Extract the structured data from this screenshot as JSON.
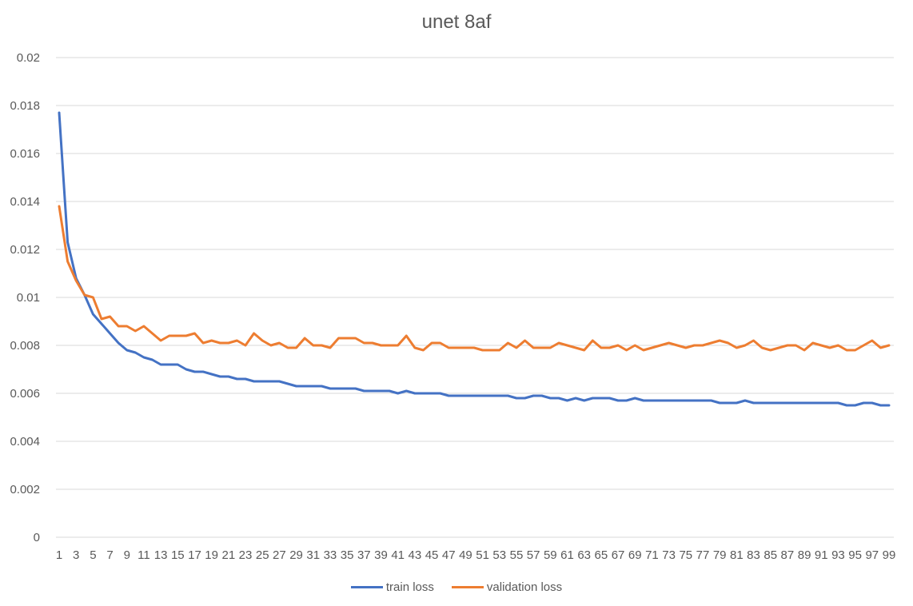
{
  "chart_data": {
    "type": "line",
    "title": "unet 8af",
    "xlabel": "",
    "ylabel": "",
    "ylim": [
      0,
      0.02
    ],
    "yticks": [
      "0",
      "0.002",
      "0.004",
      "0.006",
      "0.008",
      "0.01",
      "0.012",
      "0.014",
      "0.016",
      "0.018",
      "0.02"
    ],
    "xtick_labels": [
      "1",
      "3",
      "5",
      "7",
      "9",
      "11",
      "13",
      "15",
      "17",
      "19",
      "21",
      "23",
      "25",
      "27",
      "29",
      "31",
      "33",
      "35",
      "37",
      "39",
      "41",
      "43",
      "45",
      "47",
      "49",
      "51",
      "53",
      "55",
      "57",
      "59",
      "61",
      "63",
      "65",
      "67",
      "69",
      "71",
      "73",
      "75",
      "77",
      "79",
      "81",
      "83",
      "85",
      "87",
      "89",
      "91",
      "93",
      "95",
      "97",
      "99"
    ],
    "grid": "horizontal",
    "legend_position": "bottom",
    "x": [
      1,
      2,
      3,
      4,
      5,
      6,
      7,
      8,
      9,
      10,
      11,
      12,
      13,
      14,
      15,
      16,
      17,
      18,
      19,
      20,
      21,
      22,
      23,
      24,
      25,
      26,
      27,
      28,
      29,
      30,
      31,
      32,
      33,
      34,
      35,
      36,
      37,
      38,
      39,
      40,
      41,
      42,
      43,
      44,
      45,
      46,
      47,
      48,
      49,
      50,
      51,
      52,
      53,
      54,
      55,
      56,
      57,
      58,
      59,
      60,
      61,
      62,
      63,
      64,
      65,
      66,
      67,
      68,
      69,
      70,
      71,
      72,
      73,
      74,
      75,
      76,
      77,
      78,
      79,
      80,
      81,
      82,
      83,
      84,
      85,
      86,
      87,
      88,
      89,
      90,
      91,
      92,
      93,
      94,
      95,
      96,
      97,
      98,
      99
    ],
    "series": [
      {
        "name": "train loss",
        "color": "#4472C4",
        "values": [
          0.0177,
          0.0123,
          0.0108,
          0.0101,
          0.0093,
          0.0089,
          0.0085,
          0.0081,
          0.0078,
          0.0077,
          0.0075,
          0.0074,
          0.0072,
          0.0072,
          0.0072,
          0.007,
          0.0069,
          0.0069,
          0.0068,
          0.0067,
          0.0067,
          0.0066,
          0.0066,
          0.0065,
          0.0065,
          0.0065,
          0.0065,
          0.0064,
          0.0063,
          0.0063,
          0.0063,
          0.0063,
          0.0062,
          0.0062,
          0.0062,
          0.0062,
          0.0061,
          0.0061,
          0.0061,
          0.0061,
          0.006,
          0.0061,
          0.006,
          0.006,
          0.006,
          0.006,
          0.0059,
          0.0059,
          0.0059,
          0.0059,
          0.0059,
          0.0059,
          0.0059,
          0.0059,
          0.0058,
          0.0058,
          0.0059,
          0.0059,
          0.0058,
          0.0058,
          0.0057,
          0.0058,
          0.0057,
          0.0058,
          0.0058,
          0.0058,
          0.0057,
          0.0057,
          0.0058,
          0.0057,
          0.0057,
          0.0057,
          0.0057,
          0.0057,
          0.0057,
          0.0057,
          0.0057,
          0.0057,
          0.0056,
          0.0056,
          0.0056,
          0.0057,
          0.0056,
          0.0056,
          0.0056,
          0.0056,
          0.0056,
          0.0056,
          0.0056,
          0.0056,
          0.0056,
          0.0056,
          0.0056,
          0.0055,
          0.0055,
          0.0056,
          0.0056,
          0.0055,
          0.0055
        ]
      },
      {
        "name": "validation loss",
        "color": "#ED7D31",
        "values": [
          0.0138,
          0.0115,
          0.0107,
          0.0101,
          0.01,
          0.0091,
          0.0092,
          0.0088,
          0.0088,
          0.0086,
          0.0088,
          0.0085,
          0.0082,
          0.0084,
          0.0084,
          0.0084,
          0.0085,
          0.0081,
          0.0082,
          0.0081,
          0.0081,
          0.0082,
          0.008,
          0.0085,
          0.0082,
          0.008,
          0.0081,
          0.0079,
          0.0079,
          0.0083,
          0.008,
          0.008,
          0.0079,
          0.0083,
          0.0083,
          0.0083,
          0.0081,
          0.0081,
          0.008,
          0.008,
          0.008,
          0.0084,
          0.0079,
          0.0078,
          0.0081,
          0.0081,
          0.0079,
          0.0079,
          0.0079,
          0.0079,
          0.0078,
          0.0078,
          0.0078,
          0.0081,
          0.0079,
          0.0082,
          0.0079,
          0.0079,
          0.0079,
          0.0081,
          0.008,
          0.0079,
          0.0078,
          0.0082,
          0.0079,
          0.0079,
          0.008,
          0.0078,
          0.008,
          0.0078,
          0.0079,
          0.008,
          0.0081,
          0.008,
          0.0079,
          0.008,
          0.008,
          0.0081,
          0.0082,
          0.0081,
          0.0079,
          0.008,
          0.0082,
          0.0079,
          0.0078,
          0.0079,
          0.008,
          0.008,
          0.0078,
          0.0081,
          0.008,
          0.0079,
          0.008,
          0.0078,
          0.0078,
          0.008,
          0.0082,
          0.0079,
          0.008
        ]
      }
    ]
  }
}
